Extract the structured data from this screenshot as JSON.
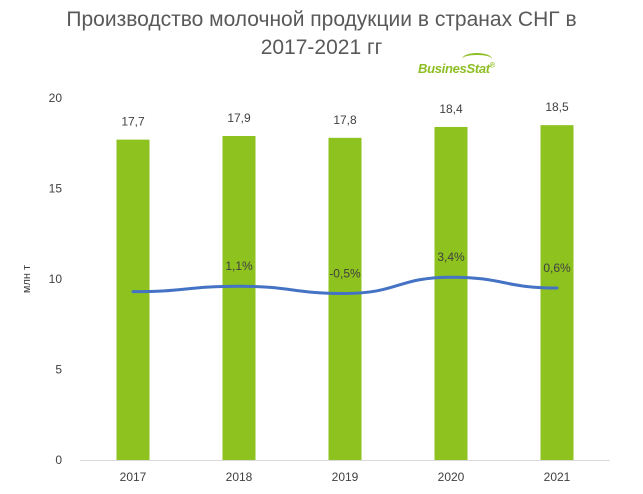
{
  "title_lines": [
    "Производство молочной продукции в странах СНГ в",
    "2017-2021 гг"
  ],
  "logo": {
    "text": "BusinesStat",
    "mark": "®"
  },
  "chart_data": {
    "type": "bar",
    "categories": [
      "2017",
      "2018",
      "2019",
      "2020",
      "2021"
    ],
    "series": [
      {
        "values": [
          17.7,
          17.9,
          17.8,
          18.4,
          18.5
        ],
        "labels": [
          "17,7",
          "17,9",
          "17,8",
          "18,4",
          "18,5"
        ],
        "color": "#8dc21f"
      }
    ],
    "line_series": [
      {
        "values": [
          9.3,
          9.6,
          9.2,
          10.1,
          9.5
        ],
        "labels": [
          "",
          "1,1%",
          "-0,5%",
          "3,4%",
          "0,6%"
        ],
        "color": "#4472c4"
      }
    ],
    "ylabel": "млн т",
    "yticks": [
      "0",
      "5",
      "10",
      "15",
      "20"
    ],
    "ylim": [
      0,
      20
    ],
    "grid": false,
    "legend": "none"
  }
}
